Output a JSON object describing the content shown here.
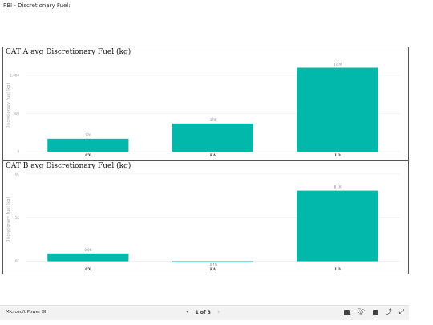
{
  "page_title": "PBI - Discretionary Fuel:",
  "chart_data": [
    {
      "type": "bar",
      "title": "CAT A avg Discretionary Fuel (kg)",
      "ylabel": "Discretionary Fuel (kg)",
      "categories": [
        "CX",
        "KA",
        "LD"
      ],
      "values": [
        170,
        370,
        1100
      ],
      "data_labels": [
        "170",
        "370",
        "1100"
      ],
      "yticks": [
        0,
        500,
        1000
      ],
      "ytick_labels": [
        "0",
        "500",
        "1,000"
      ],
      "ylim": [
        0,
        1200
      ],
      "color": "#01B8AA",
      "grid": true
    },
    {
      "type": "bar",
      "title": "CAT B avg Discretionary Fuel (kg)",
      "ylabel": "Discretionary Fuel (kg)",
      "categories": [
        "CX",
        "KA",
        "LD"
      ],
      "values": [
        900,
        -100,
        8100
      ],
      "data_labels": [
        "0.9K",
        "-0.1K",
        "8.1K"
      ],
      "yticks": [
        0,
        5000,
        10000
      ],
      "ytick_labels": [
        "0K",
        "5K",
        "10K"
      ],
      "ylim": [
        -500,
        10000
      ],
      "color": "#01B8AA",
      "grid": true
    }
  ],
  "footer": {
    "brand": "Microsoft Power BI",
    "prev_arrow": "‹",
    "page_count": "1 of 3",
    "next_arrow": "›",
    "icons": [
      "linkedin-icon",
      "twitter-icon",
      "facebook-icon",
      "share-icon",
      "fullscreen-icon"
    ]
  }
}
